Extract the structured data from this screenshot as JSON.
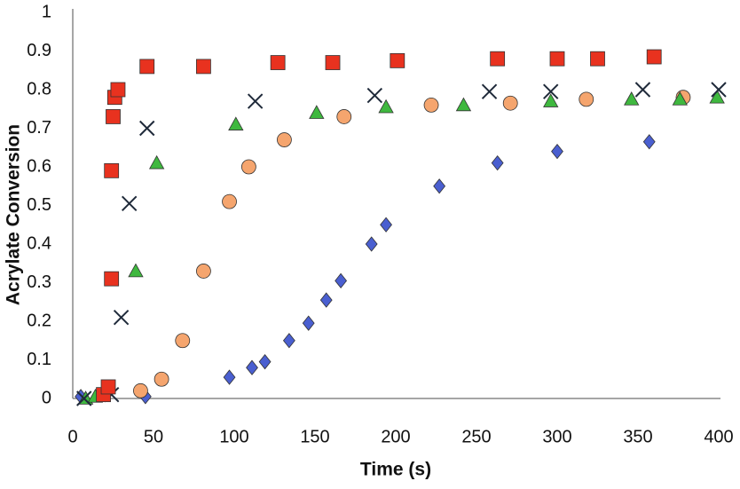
{
  "chart_data": {
    "type": "scatter",
    "xlabel": "Time (s)",
    "ylabel": "Acrylate Conversion",
    "xlim": [
      0,
      400
    ],
    "xticks": [
      0,
      50,
      100,
      150,
      200,
      250,
      300,
      350,
      400
    ],
    "ylim": [
      0,
      1
    ],
    "yticks": [
      0,
      0.1,
      0.2,
      0.3,
      0.4,
      0.5,
      0.6,
      0.7,
      0.8,
      0.9,
      1
    ],
    "grid": false,
    "series": [
      {
        "color": "#4a5fd0",
        "marker": "diamond",
        "x": [
          5,
          45,
          97,
          111,
          119,
          134,
          146,
          157,
          166,
          185,
          194,
          227,
          263,
          300,
          357
        ],
        "values": [
          0.005,
          0.005,
          0.055,
          0.08,
          0.095,
          0.15,
          0.195,
          0.255,
          0.305,
          0.4,
          0.45,
          0.55,
          0.61,
          0.64,
          0.665
        ]
      },
      {
        "color": "#f5a56e",
        "marker": "circle",
        "x": [
          42,
          55,
          68,
          81,
          97,
          109,
          131,
          168,
          222,
          271,
          318,
          378
        ],
        "values": [
          0.02,
          0.05,
          0.15,
          0.33,
          0.51,
          0.6,
          0.67,
          0.73,
          0.76,
          0.765,
          0.775,
          0.78
        ]
      },
      {
        "color": "#3fb83f",
        "marker": "triangle",
        "x": [
          8,
          14,
          39,
          52,
          101,
          151,
          194,
          242,
          296,
          346,
          376,
          399
        ],
        "values": [
          0,
          0.005,
          0.33,
          0.61,
          0.71,
          0.74,
          0.755,
          0.76,
          0.77,
          0.775,
          0.775,
          0.78
        ]
      },
      {
        "color": "#1f2a3a",
        "marker": "cross",
        "x": [
          7,
          24,
          30,
          35,
          46,
          113,
          187,
          258,
          296,
          353,
          400
        ],
        "values": [
          0,
          0.01,
          0.21,
          0.505,
          0.7,
          0.77,
          0.785,
          0.795,
          0.795,
          0.8,
          0.8
        ]
      },
      {
        "color": "#e8321f",
        "marker": "square",
        "x": [
          19,
          22,
          24,
          24,
          25,
          26,
          28,
          46,
          81,
          127,
          161,
          201,
          263,
          300,
          325,
          360
        ],
        "values": [
          0.01,
          0.03,
          0.31,
          0.59,
          0.73,
          0.78,
          0.8,
          0.86,
          0.86,
          0.87,
          0.87,
          0.875,
          0.88,
          0.88,
          0.88,
          0.885
        ]
      }
    ]
  }
}
